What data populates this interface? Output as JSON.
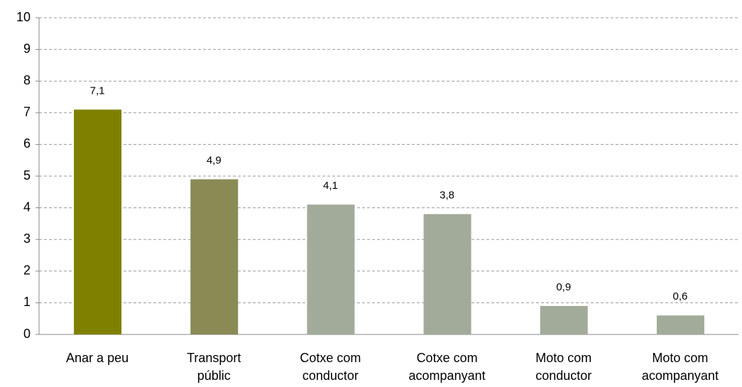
{
  "chart_data": {
    "type": "bar",
    "categories": [
      [
        "Anar a peu"
      ],
      [
        "Transport",
        "públic"
      ],
      [
        "Cotxe com",
        "conductor"
      ],
      [
        "Cotxe com",
        "acompanyant"
      ],
      [
        "Moto com",
        "conductor"
      ],
      [
        "Moto com",
        "acompanyant"
      ]
    ],
    "values": [
      7.1,
      4.9,
      4.1,
      3.8,
      0.9,
      0.6
    ],
    "value_labels": [
      "7,1",
      "4,9",
      "4,1",
      "3,8",
      "0,9",
      "0,6"
    ],
    "colors": [
      "#808000",
      "#8a8a55",
      "#a2ab9a",
      "#a2ab9a",
      "#a2ab9a",
      "#a2ab9a"
    ],
    "ylim": [
      0,
      10
    ],
    "yticks": [
      0,
      1,
      2,
      3,
      4,
      5,
      6,
      7,
      8,
      9,
      10
    ],
    "grid": true
  }
}
